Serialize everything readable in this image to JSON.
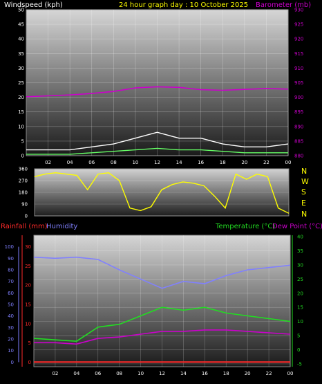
{
  "header": {
    "windspeed_label": "Windspeed (kph)",
    "title": "24 hour graph day : 10 October 2025",
    "barometer_label": "Barometer (mb)"
  },
  "lower_header": {
    "rainfall_label": "Rainfall (mm)",
    "humidity_label": "Humidity",
    "temperature_label": "Temperature (°C)",
    "dewpoint_label": "Dew Point (°C)"
  },
  "compass_labels": [
    "N",
    "W",
    "S",
    "E",
    "N"
  ],
  "colors": {
    "windspeed_label": "#ffffff",
    "title": "#ffff00",
    "barometer": "#cc00cc",
    "gust": "#ffffff",
    "avg_wind": "#66ff66",
    "wind_direction": "#ffff00",
    "rainfall": "#ff2a2a",
    "humidity": "#8080ff",
    "temperature": "#22dd22",
    "dewpoint": "#cc00cc",
    "axis_yellow": "#ffff00"
  },
  "chart_data": [
    {
      "type": "line",
      "id": "wind_baro",
      "x_ticks": [
        "02",
        "04",
        "06",
        "08",
        "10",
        "12",
        "14",
        "16",
        "18",
        "20",
        "22",
        "00"
      ],
      "left_axis": {
        "label": "Windspeed (kph)",
        "ylim": [
          0,
          50
        ],
        "ticks": [
          "0",
          "5",
          "10",
          "15",
          "20",
          "25",
          "30",
          "35",
          "40",
          "45",
          "50"
        ]
      },
      "right_axis": {
        "label": "Barometer (mb)",
        "ylim": [
          880,
          930
        ],
        "ticks": [
          "880",
          "885",
          "890",
          "895",
          "900",
          "905",
          "910",
          "915",
          "920",
          "925",
          "930"
        ]
      },
      "grid": true,
      "x_hours": [
        0,
        2,
        4,
        6,
        8,
        10,
        12,
        14,
        16,
        18,
        20,
        22,
        24
      ],
      "series": [
        {
          "name": "Barometer (mb)",
          "axis": "right",
          "values": [
            900.2,
            900.5,
            900.8,
            901.3,
            902.0,
            903.2,
            903.6,
            903.4,
            902.6,
            902.4,
            902.7,
            903.0,
            902.8
          ]
        },
        {
          "name": "Gust",
          "axis": "left",
          "values": [
            2,
            2,
            2,
            3,
            4,
            6,
            8,
            6,
            6,
            4,
            3,
            3,
            4
          ]
        },
        {
          "name": "Average",
          "axis": "left",
          "values": [
            0.5,
            0.5,
            0.5,
            1,
            1.5,
            2,
            2.5,
            2,
            2,
            1.5,
            1,
            1,
            1
          ]
        }
      ]
    },
    {
      "type": "scatter",
      "id": "wind_direction",
      "y_ticks": [
        "0",
        "90",
        "180",
        "270",
        "360"
      ],
      "ylim": [
        0,
        360
      ],
      "x_hours": [
        0,
        1,
        2,
        3,
        4,
        5,
        6,
        7,
        8,
        9,
        10,
        11,
        12,
        13,
        14,
        15,
        16,
        17,
        18,
        19,
        20,
        21,
        22,
        23,
        24
      ],
      "values": [
        300,
        320,
        330,
        320,
        310,
        200,
        320,
        330,
        270,
        60,
        40,
        70,
        200,
        240,
        260,
        250,
        230,
        150,
        60,
        320,
        280,
        320,
        300,
        60,
        20
      ]
    },
    {
      "type": "line",
      "id": "temp_hum_rain",
      "x_ticks": [
        "02",
        "04",
        "06",
        "08",
        "10",
        "12",
        "14",
        "16",
        "18",
        "20",
        "22",
        "00"
      ],
      "humidity_axis": {
        "label": "Humidity",
        "ylim": [
          0,
          100
        ],
        "ticks": [
          "0",
          "10",
          "20",
          "30",
          "40",
          "50",
          "60",
          "70",
          "80",
          "90",
          "100"
        ]
      },
      "rain_axis": {
        "label": "Rainfall (mm)",
        "ylim": [
          0,
          30
        ],
        "ticks": [
          "0",
          "5",
          "10",
          "15",
          "20",
          "25",
          "30"
        ]
      },
      "temp_axis": {
        "label": "Temperature (°C)",
        "ylim": [
          -5,
          40
        ],
        "ticks": [
          "-5",
          "0",
          "5",
          "10",
          "15",
          "20",
          "25",
          "30",
          "35",
          "40"
        ]
      },
      "grid": true,
      "x_hours": [
        0,
        2,
        4,
        6,
        8,
        10,
        12,
        14,
        16,
        18,
        20,
        22,
        24
      ],
      "series": [
        {
          "name": "Humidity",
          "axis": "humidity",
          "values": [
            91,
            90,
            91,
            89,
            80,
            72,
            64,
            70,
            68,
            75,
            80,
            82,
            84
          ]
        },
        {
          "name": "Temperature (°C)",
          "axis": "temp",
          "values": [
            4,
            3.5,
            3,
            8,
            9,
            12,
            15,
            14,
            15,
            13,
            12,
            11,
            10
          ]
        },
        {
          "name": "Dew Point (°C)",
          "axis": "temp",
          "values": [
            2.5,
            2.5,
            2,
            4,
            4.5,
            5.5,
            6.5,
            6.5,
            7,
            7,
            6.5,
            6,
            5.5
          ]
        },
        {
          "name": "Rainfall (mm)",
          "axis": "rain",
          "values": [
            0,
            0,
            0,
            0,
            0,
            0,
            0,
            0,
            0,
            0,
            0,
            0,
            0
          ]
        }
      ]
    }
  ]
}
